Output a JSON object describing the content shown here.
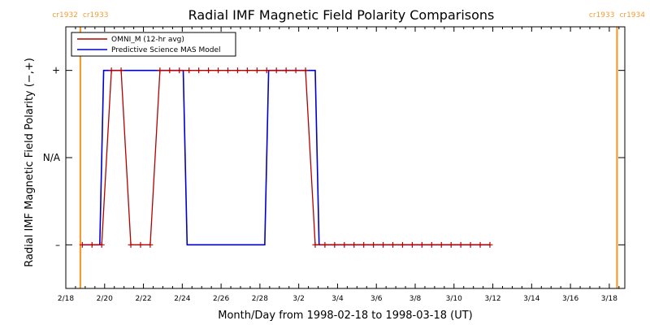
{
  "chart_data": {
    "type": "line",
    "title": "Radial IMF Magnetic Field Polarity Comparisons",
    "xlabel": "Month/Day from 1998-02-18 to 1998-03-18 (UT)",
    "ylabel": "Radial IMF Magnetic Field Polarity (−,+)",
    "x_unit": "days from 1998-02-18",
    "xlim": [
      0,
      28.8
    ],
    "ylim": [
      -1.5,
      1.5
    ],
    "x_ticks": [
      {
        "x": 0,
        "label": "2/18"
      },
      {
        "x": 2,
        "label": "2/20"
      },
      {
        "x": 4,
        "label": "2/22"
      },
      {
        "x": 6,
        "label": "2/24"
      },
      {
        "x": 8,
        "label": "2/26"
      },
      {
        "x": 10,
        "label": "2/28"
      },
      {
        "x": 12,
        "label": "3/2"
      },
      {
        "x": 14,
        "label": "3/4"
      },
      {
        "x": 16,
        "label": "3/6"
      },
      {
        "x": 18,
        "label": "3/8"
      },
      {
        "x": 20,
        "label": "3/10"
      },
      {
        "x": 22,
        "label": "3/12"
      },
      {
        "x": 24,
        "label": "3/14"
      },
      {
        "x": 26,
        "label": "3/16"
      },
      {
        "x": 28,
        "label": "3/18"
      }
    ],
    "y_ticks": [
      {
        "y": 1,
        "label": "+"
      },
      {
        "y": 0,
        "label": "N/A"
      },
      {
        "y": -1,
        "label": "–"
      }
    ],
    "legend": {
      "placement": "top-left"
    },
    "series": [
      {
        "name": "OMNI_M (12-hr avg)",
        "color": "#b30000",
        "markers": true,
        "points": [
          [
            1.7,
            -1
          ],
          [
            2.2,
            -1
          ],
          [
            2.7,
            -1
          ],
          [
            3.2,
            1
          ],
          [
            3.7,
            1
          ],
          [
            4.2,
            -1
          ],
          [
            4.7,
            -1
          ],
          [
            5.2,
            -1
          ],
          [
            5.7,
            1
          ],
          [
            6.2,
            1
          ],
          [
            6.7,
            1
          ],
          [
            7.2,
            1
          ],
          [
            7.7,
            1
          ],
          [
            8.2,
            1
          ],
          [
            8.7,
            1
          ],
          [
            9.2,
            1
          ],
          [
            9.7,
            1
          ],
          [
            10.2,
            1
          ],
          [
            10.7,
            1
          ],
          [
            11.2,
            1
          ],
          [
            11.7,
            1
          ],
          [
            12.2,
            -1
          ],
          [
            12.7,
            -1
          ],
          [
            13.2,
            -1
          ],
          [
            13.7,
            -1
          ],
          [
            14.2,
            -1
          ],
          [
            14.7,
            -1
          ],
          [
            15.2,
            -1
          ],
          [
            15.7,
            -1
          ],
          [
            16.2,
            -1
          ],
          [
            16.7,
            -1
          ],
          [
            17.2,
            -1
          ],
          [
            17.7,
            -1
          ],
          [
            18.2,
            -1
          ],
          [
            18.7,
            -1
          ],
          [
            19.2,
            -1
          ],
          [
            19.7,
            -1
          ],
          [
            20.2,
            -1
          ],
          [
            20.7,
            -1
          ],
          [
            21.2,
            -1
          ],
          [
            21.7,
            -1
          ],
          [
            22.2,
            -1
          ],
          [
            22.7,
            -1
          ]
        ]
      },
      {
        "name": "Predictive Science MAS Model",
        "color": "#0000cc",
        "markers": false,
        "points": [
          [
            1.7,
            -1
          ],
          [
            2.6,
            -1
          ],
          [
            2.8,
            1
          ],
          [
            6.9,
            1
          ],
          [
            7.1,
            -1
          ],
          [
            11.1,
            -1
          ],
          [
            11.3,
            1
          ],
          [
            13.7,
            1
          ],
          [
            13.9,
            -1
          ],
          [
            22.7,
            -1
          ]
        ]
      }
    ],
    "omni_points": [
      [
        0.85,
        -1
      ],
      [
        1.35,
        -1
      ],
      [
        1.85,
        -1
      ],
      [
        2.35,
        1
      ],
      [
        2.85,
        1
      ],
      [
        3.35,
        -1
      ],
      [
        3.85,
        -1
      ],
      [
        4.35,
        -1
      ],
      [
        4.85,
        1
      ],
      [
        5.35,
        1
      ],
      [
        5.85,
        1
      ],
      [
        6.35,
        1
      ],
      [
        6.85,
        1
      ],
      [
        7.35,
        1
      ],
      [
        7.85,
        1
      ],
      [
        8.35,
        1
      ],
      [
        8.85,
        1
      ],
      [
        9.35,
        1
      ],
      [
        9.85,
        1
      ],
      [
        10.35,
        1
      ],
      [
        10.85,
        1
      ],
      [
        11.35,
        1
      ],
      [
        11.85,
        1
      ],
      [
        12.35,
        1
      ],
      [
        12.85,
        -1
      ],
      [
        13.35,
        -1
      ],
      [
        13.85,
        -1
      ],
      [
        14.35,
        -1
      ],
      [
        14.85,
        -1
      ],
      [
        15.35,
        -1
      ],
      [
        15.85,
        -1
      ],
      [
        16.35,
        -1
      ],
      [
        16.85,
        -1
      ],
      [
        17.35,
        -1
      ],
      [
        17.85,
        -1
      ],
      [
        18.35,
        -1
      ],
      [
        18.85,
        -1
      ],
      [
        19.35,
        -1
      ],
      [
        19.85,
        -1
      ],
      [
        20.35,
        -1
      ],
      [
        20.85,
        -1
      ],
      [
        21.35,
        -1
      ],
      [
        21.85,
        -1
      ]
    ],
    "cr_boundaries": [
      {
        "x": 0.75,
        "label_left": "cr1932",
        "label_right": "cr1933",
        "color": "#f39c34"
      },
      {
        "x": 28.4,
        "label_left": "cr1933",
        "label_right": "cr1934",
        "color": "#f39c34"
      }
    ]
  },
  "legend_entries": [
    {
      "label": "OMNI_M (12-hr avg)",
      "color": "#b30000"
    },
    {
      "label": "Predictive Science MAS Model",
      "color": "#0000cc"
    }
  ]
}
